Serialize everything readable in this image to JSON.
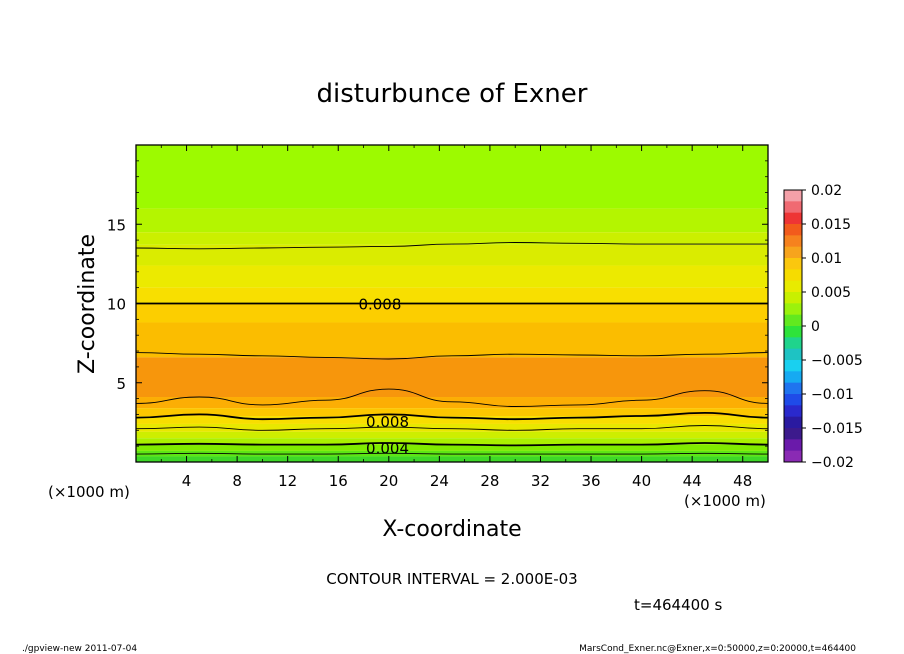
{
  "chart_data": {
    "type": "contour",
    "title": "disturbunce of Exner",
    "xlabel": "X-coordinate",
    "ylabel": "Z-coordinate",
    "x_unit_label": "(×1000 m)",
    "x_unit_label_right": "(×1000 m)",
    "xlim": [
      0,
      50
    ],
    "ylim": [
      0,
      20
    ],
    "x_ticks": [
      4,
      8,
      12,
      16,
      20,
      24,
      28,
      32,
      36,
      40,
      44,
      48
    ],
    "y_ticks": [
      5,
      10,
      15
    ],
    "contour_interval_text": "CONTOUR INTERVAL = 2.000E-03",
    "time_text": "t=464400 s",
    "contour_labels": [
      {
        "text": "0.008",
        "x": 17.6,
        "z": 10.0
      },
      {
        "text": "0.008",
        "x": 18.2,
        "z": 2.6
      },
      {
        "text": "0.004",
        "x": 18.2,
        "z": 0.9
      }
    ],
    "colorbar": {
      "ticks": [
        "0.02",
        "0.015",
        "0.01",
        "0.005",
        "0",
        "−0.005",
        "−0.01",
        "−0.015",
        "−0.02"
      ],
      "colors_top_to_bottom": [
        "#f4a0a8",
        "#f06a72",
        "#ee3535",
        "#f25b1c",
        "#f6821e",
        "#f7a41d",
        "#fbc70e",
        "#f6dc00",
        "#e8eb00",
        "#c8f000",
        "#9bf20c",
        "#62e91f",
        "#2ee33a",
        "#1fd48c",
        "#1ec3c3",
        "#19d0f0",
        "#16aaf2",
        "#1f74ef",
        "#1f4be8",
        "#2a29cc",
        "#2a1aa0",
        "#3c1a8c",
        "#6a1aaa",
        "#8a2ab4"
      ]
    },
    "bands": [
      {
        "z_top": 20.0,
        "value": 0.0045,
        "color": "#9dfa00"
      },
      {
        "z_top": 16.0,
        "value": 0.0055,
        "color": "#b4f500"
      },
      {
        "z_top": 14.5,
        "value": 0.0065,
        "color": "#cbf000"
      },
      {
        "z_top": 13.7,
        "value": 0.007,
        "color": "#daec00"
      },
      {
        "z_top": 12.4,
        "value": 0.0075,
        "color": "#ecea00"
      },
      {
        "z_top": 11.0,
        "value": 0.008,
        "color": "#f8df00"
      },
      {
        "z_top": 10.0,
        "value": 0.0085,
        "color": "#fcce00"
      },
      {
        "z_top": 8.8,
        "value": 0.009,
        "color": "#fbbd00"
      },
      {
        "z_top": 6.6,
        "value": 0.0095,
        "color": "#f7960c"
      },
      {
        "z_top": 4.1,
        "value": 0.009,
        "color": "#fcae04"
      },
      {
        "z_top": 3.4,
        "value": 0.0085,
        "color": "#fcc700"
      },
      {
        "z_top": 2.9,
        "value": 0.008,
        "color": "#f8de00"
      },
      {
        "z_top": 2.4,
        "value": 0.007,
        "color": "#e8e800"
      },
      {
        "z_top": 1.9,
        "value": 0.006,
        "color": "#cdee00"
      },
      {
        "z_top": 1.5,
        "value": 0.005,
        "color": "#aaf000"
      },
      {
        "z_top": 1.1,
        "value": 0.004,
        "color": "#80ec00"
      },
      {
        "z_top": 0.7,
        "value": 0.003,
        "color": "#5ee614"
      },
      {
        "z_top": 0.35,
        "value": 0.002,
        "color": "#3ed828"
      }
    ],
    "contours": [
      {
        "name": "contour-13.7",
        "z": [
          13.5,
          13.45,
          13.5,
          13.55,
          13.6,
          13.75,
          13.85,
          13.8,
          13.75,
          13.75,
          13.75
        ]
      },
      {
        "name": "contour-10",
        "z": [
          10.0,
          10.0,
          10.0,
          10.0,
          10.0,
          10.0,
          10.0,
          10.0,
          10.0,
          10.0,
          10.0
        ],
        "bold": true
      },
      {
        "name": "contour-6.8",
        "z": [
          6.9,
          6.8,
          6.7,
          6.6,
          6.5,
          6.7,
          6.8,
          6.75,
          6.7,
          6.8,
          6.9
        ]
      },
      {
        "name": "contour-4",
        "z": [
          3.7,
          4.1,
          3.6,
          3.9,
          4.6,
          3.8,
          3.5,
          3.6,
          3.9,
          4.5,
          3.7
        ]
      },
      {
        "name": "contour-2.9",
        "z": [
          2.8,
          3.0,
          2.7,
          2.8,
          3.0,
          2.8,
          2.7,
          2.8,
          2.9,
          3.1,
          2.8
        ],
        "bold": true
      },
      {
        "name": "contour-2.1",
        "z": [
          2.1,
          2.2,
          2.0,
          2.1,
          2.2,
          2.1,
          2.0,
          2.1,
          2.1,
          2.3,
          2.1
        ]
      },
      {
        "name": "contour-1.1",
        "z": [
          1.1,
          1.15,
          1.1,
          1.1,
          1.2,
          1.1,
          1.05,
          1.1,
          1.1,
          1.2,
          1.1
        ],
        "bold": true
      },
      {
        "name": "contour-0.5",
        "z": [
          0.5,
          0.55,
          0.5,
          0.5,
          0.55,
          0.5,
          0.5,
          0.5,
          0.5,
          0.55,
          0.5
        ]
      }
    ],
    "contour_x": [
      0,
      5,
      10,
      15,
      20,
      25,
      30,
      35,
      40,
      45,
      50
    ]
  },
  "footer": {
    "left": "./gpview-new   2011-07-04",
    "right": "MarsCond_Exner.nc@Exner,x=0:50000,z=0:20000,t=464400"
  }
}
